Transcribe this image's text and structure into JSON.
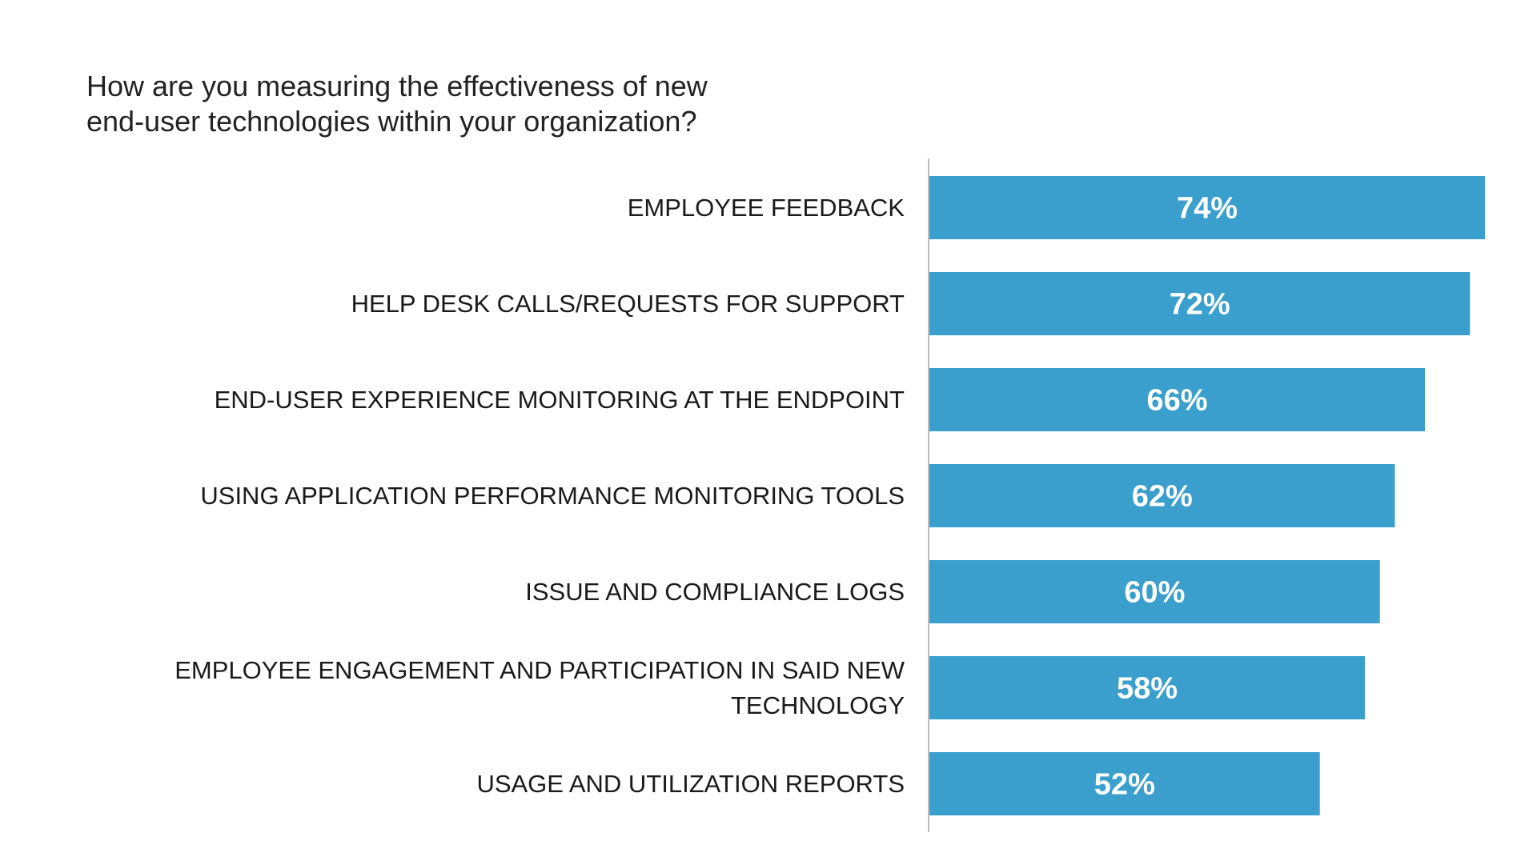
{
  "chart_data": {
    "type": "bar",
    "orientation": "horizontal",
    "title": [
      "How are you measuring the effectiveness of new",
      "end-user technologies within your organization?"
    ],
    "categories": [
      "EMPLOYEE FEEDBACK",
      "HELP DESK CALLS/REQUESTS FOR SUPPORT",
      "END-USER EXPERIENCE MONITORING AT THE ENDPOINT",
      "USING APPLICATION PERFORMANCE MONITORING TOOLS",
      "ISSUE AND COMPLIANCE LOGS",
      "EMPLOYEE ENGAGEMENT AND PARTICIPATION IN SAID NEW TECHNOLOGY",
      "USAGE AND UTILIZATION REPORTS"
    ],
    "values": [
      74,
      72,
      66,
      62,
      60,
      58,
      52
    ],
    "data_labels": [
      "74%",
      "72%",
      "66%",
      "62%",
      "60%",
      "58%",
      "52%"
    ],
    "unit": "%",
    "xlim": [
      0,
      74
    ],
    "grid": false,
    "legend": "none",
    "bar_color": "#3a9fcd",
    "label_color": "#ffffff"
  }
}
